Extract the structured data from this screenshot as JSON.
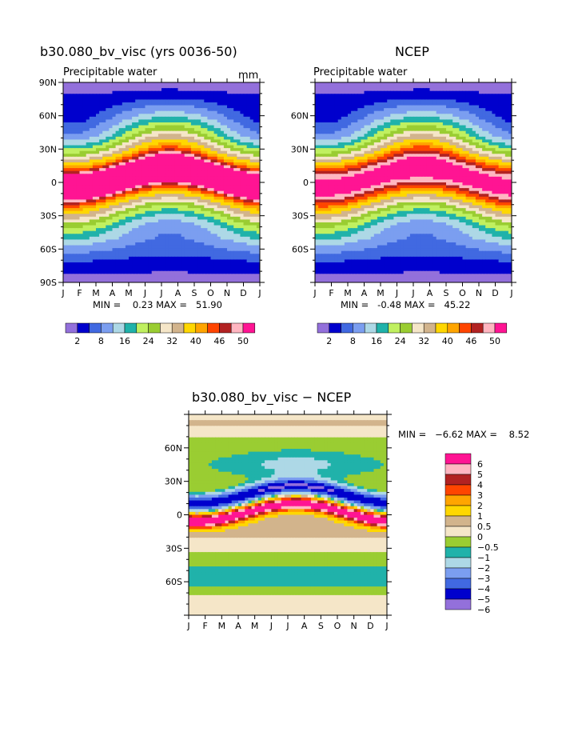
{
  "chart_data": [
    {
      "type": "heatmap",
      "title": "b30.080_bv_visc (yrs 0036-50)",
      "subtitle": "Precipitable water",
      "units": "mm",
      "xlabel": "",
      "ylabel": "",
      "x_ticks": [
        "J",
        "F",
        "M",
        "A",
        "M",
        "J",
        "J",
        "A",
        "S",
        "O",
        "N",
        "D",
        "J"
      ],
      "y_ticks": [
        "90N",
        "60N",
        "30N",
        "0",
        "30S",
        "60S",
        "90S"
      ],
      "ylim": [
        -90,
        90
      ],
      "stats": "MIN =    0.23 MAX =   51.90",
      "min": 0.23,
      "max": 51.9,
      "colorbar_labels": [
        "2",
        "8",
        "16",
        "24",
        "32",
        "40",
        "46",
        "50"
      ]
    },
    {
      "type": "heatmap",
      "title": "NCEP",
      "subtitle": "Precipitable water",
      "units": "",
      "xlabel": "",
      "ylabel": "",
      "x_ticks": [
        "J",
        "F",
        "M",
        "A",
        "M",
        "J",
        "J",
        "A",
        "S",
        "O",
        "N",
        "D",
        "J"
      ],
      "y_ticks": [
        "60N",
        "30N",
        "0",
        "30S",
        "60S"
      ],
      "ylim": [
        -90,
        90
      ],
      "stats": "MIN =   -0.48 MAX =   45.22",
      "min": -0.48,
      "max": 45.22,
      "colorbar_labels": [
        "2",
        "8",
        "16",
        "24",
        "32",
        "40",
        "46",
        "50"
      ]
    },
    {
      "type": "heatmap",
      "title": "b30.080_bv_visc − NCEP",
      "subtitle": "",
      "xlabel": "",
      "ylabel": "",
      "x_ticks": [
        "J",
        "F",
        "M",
        "A",
        "M",
        "J",
        "J",
        "A",
        "S",
        "O",
        "N",
        "D",
        "J"
      ],
      "y_ticks": [
        "60N",
        "30N",
        "0",
        "30S",
        "60S"
      ],
      "ylim": [
        -90,
        90
      ],
      "stats": "MIN =   −6.62 MAX =    8.52",
      "min": -6.62,
      "max": 8.52,
      "legend_labels": [
        "6",
        "5",
        "4",
        "3",
        "2",
        "1",
        "0.5",
        "0",
        "−0.5",
        "−1",
        "−2",
        "−3",
        "−4",
        "−5",
        "−6"
      ]
    }
  ],
  "palette": {
    "abs": [
      "#9370db",
      "#0000cd",
      "#4169e1",
      "#7b9ef0",
      "#add8e6",
      "#20b2aa",
      "#c0f060",
      "#9acd32",
      "#f5e6c8",
      "#d2b48c",
      "#ffd700",
      "#ffa500",
      "#ff4500",
      "#b22222",
      "#ffb6c1",
      "#ff1493"
    ],
    "diff": [
      "#ff1493",
      "#ffb6c1",
      "#b22222",
      "#ff4500",
      "#ffa500",
      "#ffd700",
      "#d2b48c",
      "#f5e6c8",
      "#9acd32",
      "#20b2aa",
      "#add8e6",
      "#7b9ef0",
      "#4169e1",
      "#0000cd",
      "#9370db"
    ]
  }
}
